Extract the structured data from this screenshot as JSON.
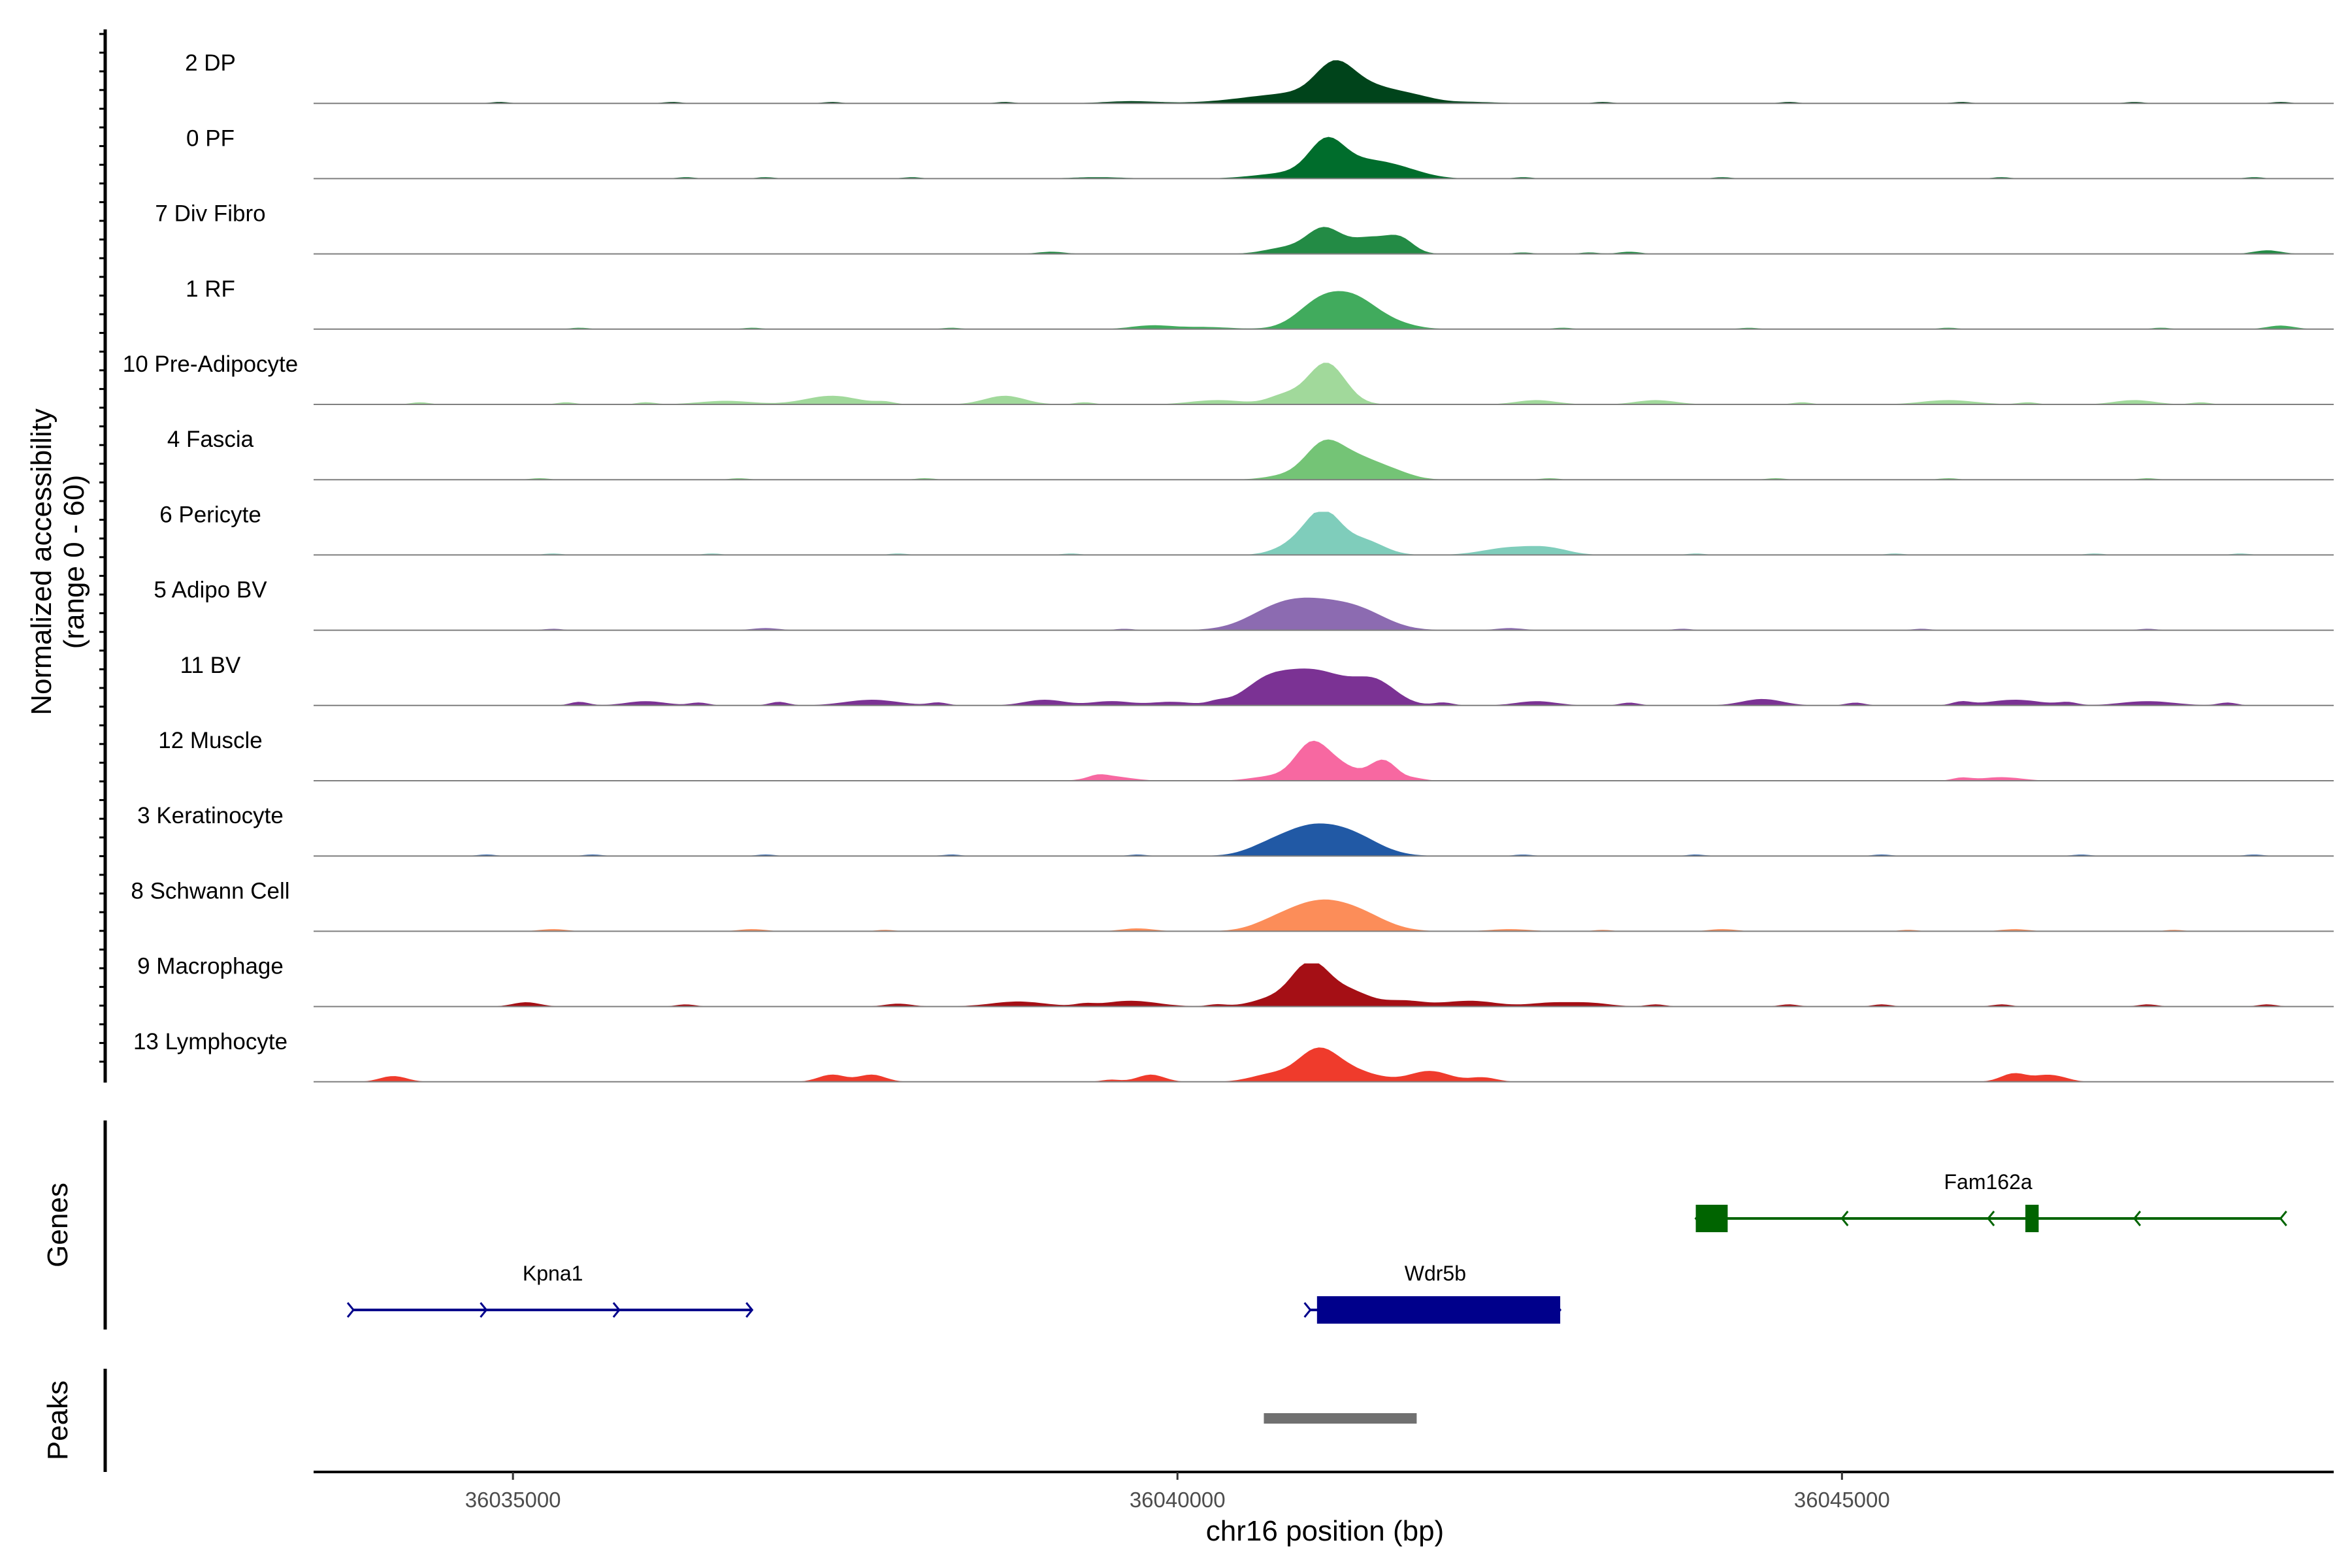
{
  "chart_data": {
    "type": "area",
    "title": "",
    "xlabel": "chr16 position (bp)",
    "ylabel": "Normalized accessibility\n(range 0 - 60)",
    "ylabel_line1": "Normalized accessibility",
    "ylabel_line2": "(range 0 - 60)",
    "ylim": [
      0,
      60
    ],
    "xlim": [
      36033500,
      36048700
    ],
    "x_ticks": [
      36035000,
      36040000,
      36045000
    ],
    "x_tick_labels": [
      "36035000",
      "36040000",
      "36045000"
    ],
    "panel_labels": {
      "genes": "Genes",
      "peaks": "Peaks"
    },
    "baseline_color": "#7f7f7f",
    "series": [
      {
        "name": "2 DP",
        "color": "#00441b",
        "peaks": [
          [
            36040900,
            380,
            14
          ],
          [
            36041180,
            140,
            40
          ],
          [
            36041450,
            220,
            20
          ],
          [
            36041800,
            150,
            6
          ],
          [
            36039650,
            200,
            3
          ],
          [
            36042200,
            200,
            2
          ]
        ],
        "noise": [
          [
            36034900,
            2
          ],
          [
            36036200,
            2
          ],
          [
            36037400,
            2
          ],
          [
            36038700,
            2
          ],
          [
            36043200,
            2
          ],
          [
            36044600,
            2
          ],
          [
            36045900,
            2
          ],
          [
            36047200,
            2
          ],
          [
            36048300,
            2
          ]
        ]
      },
      {
        "name": "0 PF",
        "color": "#006d2c",
        "peaks": [
          [
            36040850,
            250,
            8
          ],
          [
            36041120,
            130,
            45
          ],
          [
            36041400,
            200,
            22
          ],
          [
            36041700,
            180,
            10
          ],
          [
            36039400,
            200,
            2
          ]
        ],
        "noise": [
          [
            36036300,
            2
          ],
          [
            36036900,
            2
          ],
          [
            36038000,
            2
          ],
          [
            36042600,
            2
          ],
          [
            36044100,
            2
          ],
          [
            36046200,
            2
          ],
          [
            36048100,
            2
          ]
        ]
      },
      {
        "name": "7 Div Fibro",
        "color": "#238b45",
        "peaks": [
          [
            36040800,
            150,
            8
          ],
          [
            36041100,
            130,
            35
          ],
          [
            36041450,
            150,
            22
          ],
          [
            36041680,
            100,
            18
          ],
          [
            36039050,
            100,
            3
          ],
          [
            36043400,
            80,
            3
          ],
          [
            36048200,
            100,
            5
          ]
        ],
        "noise": [
          [
            36042600,
            2
          ],
          [
            36043100,
            2
          ]
        ]
      },
      {
        "name": "1 RF",
        "color": "#41ab5d",
        "peaks": [
          [
            36041100,
            180,
            42
          ],
          [
            36041350,
            150,
            25
          ],
          [
            36041550,
            180,
            12
          ],
          [
            36039800,
            150,
            5
          ],
          [
            36040200,
            200,
            3
          ],
          [
            36048300,
            100,
            5
          ]
        ],
        "noise": [
          [
            36035500,
            2
          ],
          [
            36036800,
            2
          ],
          [
            36038300,
            2
          ],
          [
            36042900,
            2
          ],
          [
            36044300,
            2
          ],
          [
            36045800,
            2
          ],
          [
            36047400,
            2
          ]
        ]
      },
      {
        "name": "10 Pre-Adipocyte",
        "color": "#a1d99b",
        "peaks": [
          [
            36041120,
            140,
            58
          ],
          [
            36040800,
            120,
            12
          ],
          [
            36036600,
            200,
            5
          ],
          [
            36037400,
            200,
            12
          ],
          [
            36038700,
            150,
            12
          ],
          [
            36040300,
            200,
            6
          ],
          [
            36042700,
            150,
            6
          ],
          [
            36043600,
            150,
            6
          ],
          [
            36045800,
            200,
            6
          ],
          [
            36047200,
            150,
            6
          ]
        ],
        "noise": [
          [
            36034300,
            3
          ],
          [
            36035400,
            3
          ],
          [
            36036000,
            3
          ],
          [
            36037800,
            3
          ],
          [
            36039300,
            3
          ],
          [
            36044700,
            3
          ],
          [
            36046400,
            3
          ],
          [
            36047700,
            3
          ]
        ]
      },
      {
        "name": "4 Fascia",
        "color": "#74c476",
        "peaks": [
          [
            36041100,
            140,
            48
          ],
          [
            36041350,
            150,
            25
          ],
          [
            36041600,
            150,
            12
          ],
          [
            36040800,
            150,
            5
          ]
        ],
        "noise": [
          [
            36035200,
            2
          ],
          [
            36036700,
            2
          ],
          [
            36038100,
            2
          ],
          [
            36042800,
            2
          ],
          [
            36044500,
            2
          ],
          [
            36045800,
            2
          ],
          [
            36047300,
            2
          ]
        ]
      },
      {
        "name": "6 Pericyte",
        "color": "#7fcdbb",
        "peaks": [
          [
            36041100,
            130,
            55
          ],
          [
            36041400,
            150,
            20
          ],
          [
            36040900,
            150,
            15
          ],
          [
            36042500,
            200,
            10
          ],
          [
            36042800,
            150,
            8
          ]
        ],
        "noise": [
          [
            36035300,
            2
          ],
          [
            36036500,
            2
          ],
          [
            36037900,
            2
          ],
          [
            36039200,
            2
          ],
          [
            36043900,
            2
          ],
          [
            36045400,
            2
          ],
          [
            36046900,
            2
          ],
          [
            36048000,
            2
          ]
        ]
      },
      {
        "name": "5 Adipo BV",
        "color": "#8c6bb1",
        "peaks": [
          [
            36041000,
            300,
            40
          ],
          [
            36040700,
            200,
            10
          ],
          [
            36041400,
            200,
            15
          ],
          [
            36036900,
            100,
            3
          ],
          [
            36042500,
            100,
            3
          ]
        ],
        "noise": [
          [
            36035300,
            2
          ],
          [
            36039600,
            2
          ],
          [
            36043800,
            2
          ],
          [
            36045600,
            2
          ],
          [
            36047300,
            2
          ]
        ]
      },
      {
        "name": "11 BV",
        "color": "#7b3294",
        "peaks": [
          [
            36041000,
            300,
            50
          ],
          [
            36040650,
            150,
            15
          ],
          [
            36041500,
            150,
            25
          ],
          [
            36039950,
            150,
            5
          ],
          [
            36036000,
            150,
            6
          ],
          [
            36037700,
            200,
            8
          ],
          [
            36039000,
            150,
            8
          ],
          [
            36039500,
            150,
            6
          ],
          [
            36042700,
            150,
            6
          ],
          [
            36044400,
            150,
            9
          ],
          [
            36046300,
            200,
            8
          ],
          [
            36047300,
            200,
            6
          ]
        ],
        "noise": [
          [
            36035500,
            5
          ],
          [
            36036400,
            4
          ],
          [
            36037000,
            5
          ],
          [
            36038200,
            4
          ],
          [
            36040300,
            4
          ],
          [
            36042000,
            4
          ],
          [
            36043400,
            4
          ],
          [
            36045100,
            4
          ],
          [
            36045900,
            5
          ],
          [
            36046700,
            4
          ],
          [
            36047900,
            4
          ]
        ]
      },
      {
        "name": "12 Muscle",
        "color": "#f768a1",
        "peaks": [
          [
            36041000,
            120,
            45
          ],
          [
            36041200,
            150,
            22
          ],
          [
            36041550,
            100,
            28
          ],
          [
            36040700,
            150,
            6
          ],
          [
            36039500,
            150,
            6
          ],
          [
            36046200,
            150,
            5
          ]
        ],
        "noise": [
          [
            36039400,
            4
          ],
          [
            36041800,
            3
          ],
          [
            36045900,
            4
          ]
        ]
      },
      {
        "name": "3 Keratinocyte",
        "color": "#2159a5",
        "peaks": [
          [
            36041000,
            250,
            40
          ],
          [
            36041350,
            200,
            18
          ],
          [
            36040650,
            150,
            5
          ]
        ],
        "noise": [
          [
            36034800,
            2
          ],
          [
            36035600,
            2
          ],
          [
            36036900,
            2
          ],
          [
            36038300,
            2
          ],
          [
            36039700,
            2
          ],
          [
            36042600,
            2
          ],
          [
            36043900,
            2
          ],
          [
            36045300,
            2
          ],
          [
            36046800,
            2
          ],
          [
            36048100,
            2
          ]
        ]
      },
      {
        "name": "8 Schwann Cell",
        "color": "#fc8d59",
        "peaks": [
          [
            36041050,
            250,
            40
          ],
          [
            36041400,
            200,
            15
          ],
          [
            36040700,
            150,
            5
          ],
          [
            36035300,
            100,
            3
          ],
          [
            36036800,
            100,
            3
          ],
          [
            36039700,
            120,
            4
          ],
          [
            36042500,
            150,
            3
          ],
          [
            36044100,
            100,
            3
          ],
          [
            36046300,
            100,
            3
          ]
        ],
        "noise": [
          [
            36037800,
            2
          ],
          [
            36043200,
            2
          ],
          [
            36045500,
            2
          ],
          [
            36047500,
            2
          ]
        ]
      },
      {
        "name": "9 Macrophage",
        "color": "#a50f15",
        "peaks": [
          [
            36041000,
            140,
            60
          ],
          [
            36041300,
            150,
            20
          ],
          [
            36040700,
            150,
            10
          ],
          [
            36041700,
            150,
            8
          ],
          [
            36042200,
            200,
            8
          ],
          [
            36039650,
            200,
            8
          ],
          [
            36042800,
            150,
            5
          ],
          [
            36043100,
            150,
            5
          ],
          [
            36035100,
            100,
            6
          ],
          [
            36038800,
            200,
            7
          ],
          [
            36037900,
            100,
            4
          ]
        ],
        "noise": [
          [
            36036300,
            3
          ],
          [
            36039300,
            3
          ],
          [
            36040300,
            3
          ],
          [
            36043600,
            3
          ],
          [
            36044600,
            3
          ],
          [
            36045300,
            3
          ],
          [
            36046200,
            3
          ],
          [
            36047300,
            3
          ],
          [
            36048200,
            3
          ]
        ]
      },
      {
        "name": "13 Lymphocyte",
        "color": "#ef3b2c",
        "peaks": [
          [
            36041050,
            150,
            40
          ],
          [
            36041300,
            200,
            15
          ],
          [
            36040700,
            150,
            10
          ],
          [
            36041900,
            150,
            15
          ],
          [
            36034100,
            100,
            8
          ],
          [
            36037400,
            100,
            10
          ],
          [
            36037700,
            100,
            10
          ],
          [
            36039800,
            100,
            10
          ],
          [
            36046300,
            100,
            12
          ],
          [
            36046600,
            100,
            8
          ],
          [
            36042300,
            100,
            6
          ]
        ],
        "noise": [
          [
            36039500,
            3
          ],
          [
            36046500,
            3
          ]
        ]
      }
    ],
    "genes": [
      {
        "name": "Kpna1",
        "start": 36033800,
        "end": 36036800,
        "strand": "+",
        "color": "#00008b",
        "row": 2,
        "exons": []
      },
      {
        "name": "Wdr5b",
        "start": 36041000,
        "end": 36042880,
        "strand": "+",
        "color": "#00008b",
        "row": 2,
        "exons": [
          [
            36041050,
            36042880
          ]
        ]
      },
      {
        "name": "Fam162a",
        "start": 36043900,
        "end": 36048300,
        "strand": "-",
        "color": "#006400",
        "row": 1,
        "exons": [
          [
            36043900,
            36044140
          ],
          [
            36046380,
            36046480
          ]
        ]
      }
    ],
    "peaks_track": [
      {
        "start": 36040650,
        "end": 36041800,
        "color": "#707070"
      }
    ]
  }
}
